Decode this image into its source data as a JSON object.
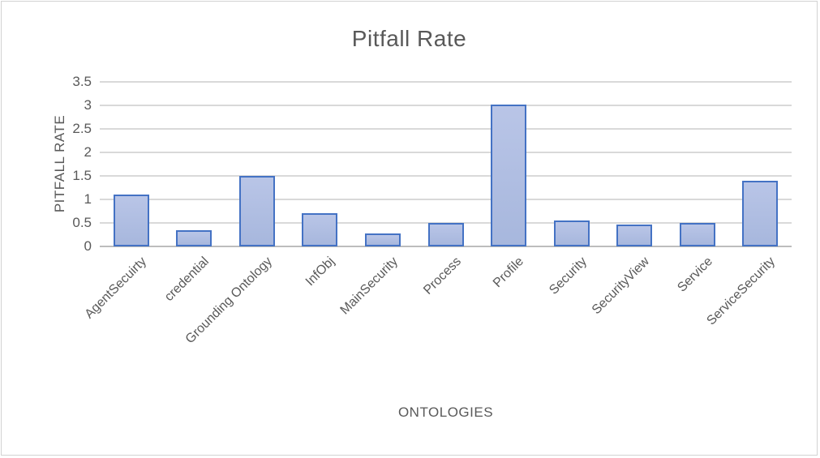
{
  "chart_data": {
    "type": "bar",
    "title": "Pitfall Rate",
    "xlabel": "ONTOLOGIES",
    "ylabel": "PITFALL RATE",
    "categories": [
      "AgentSecuirty",
      "credential",
      "Grounding Ontology",
      "InfObj",
      "MainSecurity",
      "Process",
      "Profile",
      "Security",
      "SecurityView",
      "Service",
      "ServiceSecurity"
    ],
    "values": [
      1.1,
      0.35,
      1.5,
      0.7,
      0.27,
      0.5,
      3.02,
      0.55,
      0.47,
      0.5,
      1.4
    ],
    "ylim": [
      0,
      3.5
    ],
    "yticks": [
      "0",
      "0.5",
      "1",
      "1.5",
      "2",
      "2.5",
      "3",
      "3.5"
    ],
    "grid": true,
    "legend_position": "none",
    "colors": {
      "bar_fill": "#aebce0",
      "bar_border": "#4472c4",
      "gridline": "#d9d9d9",
      "axis_line": "#bdbdbd",
      "text": "#595959",
      "frame_border": "#d2d2d2",
      "background": "#ffffff"
    }
  }
}
